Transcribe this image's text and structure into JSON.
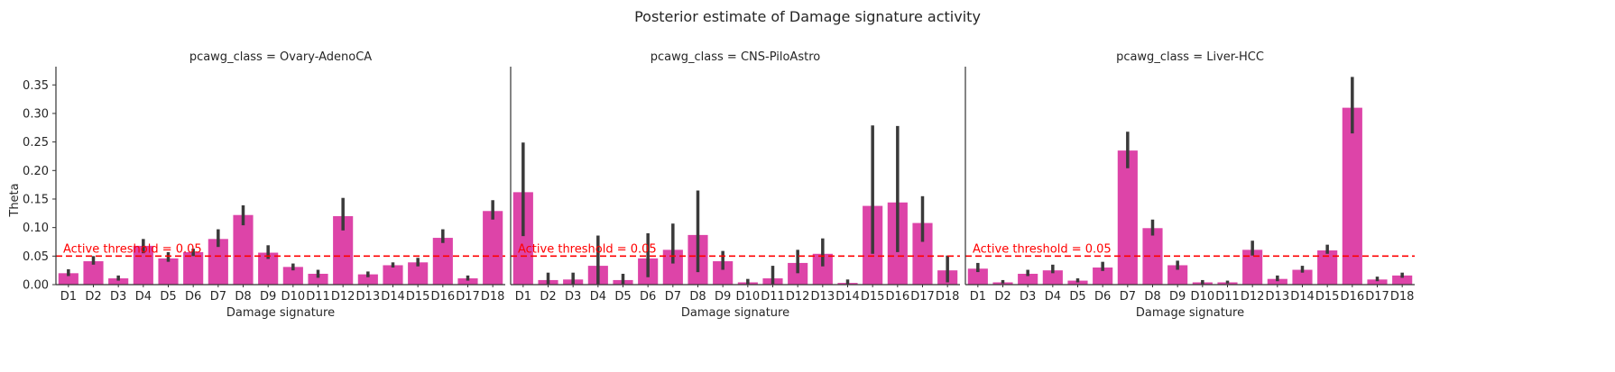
{
  "figure": {
    "suptitle": "Posterior estimate of Damage signature activity",
    "ylabel": "Theta",
    "xlabel": "Damage signature",
    "threshold_label": "Active threshold = 0.05"
  },
  "style": {
    "bar_color": "#dd44a8",
    "errorbar_color": "#3a3a3a",
    "threshold_color": "#ff0000",
    "axis_color": "#333333",
    "text_color": "#262626"
  },
  "chart_data": [
    {
      "type": "bar",
      "title": "pcawg_class = Ovary-AdenoCA",
      "xlabel": "Damage signature",
      "ylabel": "Theta",
      "ylim": [
        0,
        0.382
      ],
      "yticks": [
        0.0,
        0.05,
        0.1,
        0.15,
        0.2,
        0.25,
        0.3,
        0.35
      ],
      "yticklabels": [
        "0.00",
        "0.05",
        "0.10",
        "0.15",
        "0.20",
        "0.25",
        "0.30",
        "0.35"
      ],
      "threshold": 0.05,
      "threshold_label": "Active threshold = 0.05",
      "categories": [
        "D1",
        "D2",
        "D3",
        "D4",
        "D5",
        "D6",
        "D7",
        "D8",
        "D9",
        "D10",
        "D11",
        "D12",
        "D13",
        "D14",
        "D15",
        "D16",
        "D17",
        "D18"
      ],
      "values": [
        0.02,
        0.041,
        0.011,
        0.068,
        0.046,
        0.057,
        0.08,
        0.122,
        0.056,
        0.031,
        0.019,
        0.12,
        0.018,
        0.034,
        0.039,
        0.082,
        0.011,
        0.129
      ],
      "err_low": [
        0.015,
        0.035,
        0.007,
        0.055,
        0.04,
        0.05,
        0.066,
        0.104,
        0.045,
        0.025,
        0.012,
        0.095,
        0.013,
        0.03,
        0.032,
        0.073,
        0.007,
        0.114
      ],
      "err_high": [
        0.027,
        0.05,
        0.016,
        0.08,
        0.057,
        0.063,
        0.097,
        0.139,
        0.069,
        0.037,
        0.026,
        0.152,
        0.023,
        0.039,
        0.047,
        0.097,
        0.016,
        0.148
      ],
      "grid": false
    },
    {
      "type": "bar",
      "title": "pcawg_class = CNS-PiloAstro",
      "xlabel": "Damage signature",
      "ylabel": "",
      "ylim": [
        0,
        0.382
      ],
      "threshold": 0.05,
      "threshold_label": "Active threshold = 0.05",
      "categories": [
        "D1",
        "D2",
        "D3",
        "D4",
        "D5",
        "D6",
        "D7",
        "D8",
        "D9",
        "D10",
        "D11",
        "D12",
        "D13",
        "D14",
        "D15",
        "D16",
        "D17",
        "D18"
      ],
      "values": [
        0.162,
        0.008,
        0.009,
        0.033,
        0.008,
        0.046,
        0.061,
        0.087,
        0.041,
        0.004,
        0.011,
        0.038,
        0.054,
        0.003,
        0.138,
        0.144,
        0.108,
        0.025
      ],
      "err_low": [
        0.085,
        0.001,
        0.001,
        0.001,
        0.001,
        0.013,
        0.037,
        0.022,
        0.026,
        0.001,
        0.001,
        0.02,
        0.032,
        0.001,
        0.054,
        0.057,
        0.075,
        0.004
      ],
      "err_high": [
        0.249,
        0.021,
        0.021,
        0.086,
        0.019,
        0.09,
        0.107,
        0.165,
        0.059,
        0.01,
        0.033,
        0.061,
        0.081,
        0.009,
        0.279,
        0.278,
        0.155,
        0.051
      ],
      "grid": false
    },
    {
      "type": "bar",
      "title": "pcawg_class = Liver-HCC",
      "xlabel": "Damage signature",
      "ylabel": "",
      "ylim": [
        0,
        0.382
      ],
      "threshold": 0.05,
      "threshold_label": "Active threshold = 0.05",
      "categories": [
        "D1",
        "D2",
        "D3",
        "D4",
        "D5",
        "D6",
        "D7",
        "D8",
        "D9",
        "D10",
        "D11",
        "D12",
        "D13",
        "D14",
        "D15",
        "D16",
        "D17",
        "D18"
      ],
      "values": [
        0.028,
        0.004,
        0.019,
        0.025,
        0.007,
        0.03,
        0.235,
        0.099,
        0.034,
        0.004,
        0.004,
        0.061,
        0.01,
        0.026,
        0.06,
        0.31,
        0.009,
        0.016
      ],
      "err_low": [
        0.022,
        0.002,
        0.015,
        0.02,
        0.004,
        0.024,
        0.204,
        0.086,
        0.026,
        0.001,
        0.002,
        0.051,
        0.006,
        0.021,
        0.054,
        0.265,
        0.006,
        0.012
      ],
      "err_high": [
        0.038,
        0.008,
        0.026,
        0.035,
        0.011,
        0.04,
        0.268,
        0.114,
        0.042,
        0.008,
        0.007,
        0.077,
        0.016,
        0.033,
        0.07,
        0.364,
        0.014,
        0.021
      ],
      "grid": false
    }
  ]
}
